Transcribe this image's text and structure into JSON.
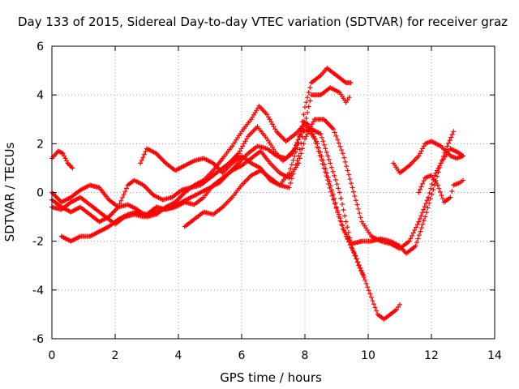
{
  "chart_data": {
    "type": "scatter",
    "title": "Day 133 of 2015, Sidereal Day-to-day VTEC variation (SDTVAR) for receiver graz",
    "xlabel": "GPS time / hours",
    "ylabel": "SDTVAR / TECUs",
    "xlim": [
      0,
      14
    ],
    "ylim": [
      -6,
      6
    ],
    "xticks": [
      0,
      2,
      4,
      6,
      8,
      10,
      12,
      14
    ],
    "yticks": [
      -6,
      -4,
      -2,
      0,
      2,
      4,
      6
    ],
    "grid": true,
    "marker": "+",
    "color": "#ff0000",
    "series": [
      {
        "name": "s1",
        "points": [
          [
            0,
            1.4
          ],
          [
            0.2,
            1.7
          ],
          [
            0.35,
            1.6
          ],
          [
            0.5,
            1.2
          ],
          [
            0.65,
            1.0
          ]
        ]
      },
      {
        "name": "s2",
        "points": [
          [
            0.3,
            -1.8
          ],
          [
            0.6,
            -2.0
          ],
          [
            0.9,
            -1.8
          ],
          [
            1.2,
            -1.8
          ],
          [
            1.5,
            -1.6
          ],
          [
            1.8,
            -1.4
          ],
          [
            2.1,
            -1.1
          ],
          [
            2.4,
            -0.9
          ],
          [
            2.7,
            -0.8
          ],
          [
            3.0,
            -0.9
          ],
          [
            3.3,
            -0.6
          ],
          [
            3.6,
            -0.7
          ],
          [
            3.9,
            -0.6
          ],
          [
            4.2,
            -0.4
          ],
          [
            4.5,
            -0.5
          ],
          [
            4.8,
            -0.2
          ],
          [
            5.1,
            0.3
          ],
          [
            5.4,
            0.6
          ],
          [
            5.7,
            0.9
          ],
          [
            6.0,
            1.1
          ],
          [
            6.3,
            1.4
          ],
          [
            6.6,
            1.7
          ],
          [
            6.9,
            1.2
          ],
          [
            7.2,
            0.8
          ],
          [
            7.5,
            0.6
          ],
          [
            7.8,
            1.2
          ],
          [
            8.0,
            2.2
          ],
          [
            8.3,
            3.0
          ],
          [
            8.6,
            3.0
          ],
          [
            8.9,
            2.6
          ],
          [
            9.2,
            1.6
          ],
          [
            9.5,
            0.2
          ],
          [
            9.8,
            -1.2
          ],
          [
            10.1,
            -1.8
          ],
          [
            10.4,
            -2.0
          ],
          [
            10.7,
            -2.1
          ],
          [
            11.0,
            -2.3
          ],
          [
            11.3,
            -2.0
          ],
          [
            11.6,
            -1.2
          ],
          [
            11.9,
            -0.2
          ],
          [
            12.1,
            0.7
          ],
          [
            12.3,
            1.2
          ],
          [
            12.6,
            1.8
          ],
          [
            12.9,
            1.6
          ],
          [
            13.0,
            1.5
          ]
        ]
      },
      {
        "name": "s3",
        "points": [
          [
            0,
            0.0
          ],
          [
            0.3,
            -0.4
          ],
          [
            0.6,
            -0.2
          ],
          [
            0.9,
            0.1
          ],
          [
            1.2,
            0.3
          ],
          [
            1.5,
            0.2
          ],
          [
            1.8,
            -0.3
          ],
          [
            2.1,
            -0.6
          ],
          [
            2.4,
            -0.5
          ],
          [
            2.7,
            -0.7
          ],
          [
            3.0,
            -1.0
          ],
          [
            3.3,
            -0.9
          ],
          [
            3.6,
            -0.6
          ],
          [
            3.9,
            -0.4
          ],
          [
            4.2,
            0.0
          ],
          [
            4.5,
            0.3
          ],
          [
            4.8,
            0.5
          ],
          [
            5.1,
            0.9
          ],
          [
            5.4,
            1.4
          ],
          [
            5.7,
            1.9
          ],
          [
            6.0,
            2.5
          ],
          [
            6.3,
            3.0
          ],
          [
            6.55,
            3.55
          ],
          [
            6.8,
            3.2
          ],
          [
            7.1,
            2.5
          ],
          [
            7.4,
            2.1
          ],
          [
            7.7,
            2.4
          ],
          [
            8.0,
            2.8
          ],
          [
            8.3,
            2.2
          ],
          [
            8.6,
            1.0
          ],
          [
            8.9,
            -0.3
          ],
          [
            9.2,
            -1.5
          ],
          [
            9.5,
            -2.1
          ],
          [
            9.8,
            -2.0
          ],
          [
            10.1,
            -2.0
          ],
          [
            10.4,
            -1.9
          ],
          [
            10.7,
            -2.0
          ],
          [
            11.0,
            -2.2
          ],
          [
            11.2,
            -2.5
          ],
          [
            11.5,
            -2.2
          ],
          [
            11.8,
            -1.0
          ],
          [
            12.1,
            0.3
          ],
          [
            12.3,
            1.2
          ],
          [
            12.5,
            1.9
          ],
          [
            12.7,
            2.5
          ]
        ]
      },
      {
        "name": "s4",
        "points": [
          [
            0,
            -0.6
          ],
          [
            0.3,
            -0.7
          ],
          [
            0.6,
            -0.4
          ],
          [
            0.9,
            -0.2
          ],
          [
            1.2,
            -0.5
          ],
          [
            1.5,
            -0.8
          ],
          [
            1.8,
            -1.1
          ],
          [
            2.0,
            -1.3
          ],
          [
            2.3,
            -1.0
          ],
          [
            2.6,
            -0.9
          ],
          [
            2.9,
            -1.0
          ],
          [
            3.2,
            -0.8
          ],
          [
            3.5,
            -0.7
          ],
          [
            3.8,
            -0.6
          ],
          [
            4.1,
            -0.4
          ],
          [
            4.4,
            -0.2
          ],
          [
            4.7,
            0.0
          ],
          [
            5.0,
            0.2
          ],
          [
            5.3,
            0.4
          ],
          [
            5.6,
            0.8
          ],
          [
            5.9,
            1.2
          ],
          [
            6.2,
            1.6
          ],
          [
            6.5,
            1.9
          ],
          [
            6.8,
            1.8
          ],
          [
            7.1,
            1.5
          ],
          [
            7.4,
            1.4
          ],
          [
            7.7,
            1.8
          ],
          [
            7.95,
            2.9
          ],
          [
            8.1,
            2.8
          ],
          [
            8.4,
            2.0
          ],
          [
            8.7,
            0.8
          ],
          [
            9.0,
            -0.6
          ],
          [
            9.3,
            -1.8
          ],
          [
            9.6,
            -2.6
          ],
          [
            9.9,
            -3.6
          ],
          [
            10.1,
            -4.3
          ],
          [
            10.3,
            -5.0
          ],
          [
            10.5,
            -5.2
          ],
          [
            10.7,
            -5.0
          ],
          [
            10.9,
            -4.8
          ],
          [
            11.0,
            -4.6
          ]
        ]
      },
      {
        "name": "s5",
        "points": [
          [
            0,
            -0.3
          ],
          [
            0.3,
            -0.6
          ],
          [
            0.6,
            -0.8
          ],
          [
            0.9,
            -0.6
          ],
          [
            1.2,
            -0.9
          ],
          [
            1.5,
            -1.2
          ],
          [
            1.8,
            -1.0
          ],
          [
            2.1,
            -0.6
          ],
          [
            2.4,
            0.3
          ],
          [
            2.6,
            0.5
          ],
          [
            2.9,
            0.3
          ],
          [
            3.2,
            -0.1
          ],
          [
            3.5,
            -0.3
          ],
          [
            3.8,
            -0.2
          ],
          [
            4.1,
            0.1
          ],
          [
            4.4,
            0.2
          ],
          [
            4.7,
            0.3
          ],
          [
            5.0,
            0.6
          ],
          [
            5.3,
            0.9
          ],
          [
            5.6,
            1.2
          ],
          [
            5.9,
            1.6
          ],
          [
            6.2,
            2.3
          ],
          [
            6.5,
            2.7
          ],
          [
            6.8,
            2.2
          ],
          [
            7.1,
            1.6
          ],
          [
            7.3,
            1.3
          ],
          [
            7.6,
            1.6
          ],
          [
            7.9,
            2.5
          ],
          [
            8.2,
            2.6
          ],
          [
            8.5,
            2.4
          ],
          [
            8.8,
            1.2
          ],
          [
            9.1,
            0.0
          ],
          [
            9.3,
            -1.2
          ],
          [
            9.5,
            -2.3
          ],
          [
            9.7,
            -3.0
          ],
          [
            9.85,
            -3.4
          ]
        ]
      },
      {
        "name": "s6",
        "points": [
          [
            2.8,
            1.2
          ],
          [
            3.0,
            1.8
          ],
          [
            3.3,
            1.6
          ],
          [
            3.6,
            1.2
          ],
          [
            3.9,
            0.9
          ],
          [
            4.2,
            1.1
          ],
          [
            4.5,
            1.3
          ],
          [
            4.8,
            1.4
          ],
          [
            5.1,
            1.2
          ],
          [
            5.4,
            0.8
          ],
          [
            5.7,
            1.2
          ],
          [
            6.0,
            1.5
          ],
          [
            6.3,
            1.2
          ],
          [
            6.6,
            1.0
          ],
          [
            6.9,
            0.5
          ],
          [
            7.2,
            0.3
          ],
          [
            7.5,
            0.8
          ],
          [
            7.8,
            2.0
          ],
          [
            8.0,
            3.5
          ],
          [
            8.2,
            4.5
          ],
          [
            8.5,
            4.8
          ],
          [
            8.7,
            5.1
          ],
          [
            9.0,
            4.8
          ],
          [
            9.3,
            4.5
          ],
          [
            9.45,
            4.5
          ]
        ]
      },
      {
        "name": "s7",
        "points": [
          [
            4.2,
            -1.4
          ],
          [
            4.5,
            -1.1
          ],
          [
            4.8,
            -0.8
          ],
          [
            5.1,
            -0.9
          ],
          [
            5.4,
            -0.6
          ],
          [
            5.7,
            -0.2
          ],
          [
            6.0,
            0.3
          ],
          [
            6.3,
            0.7
          ],
          [
            6.6,
            0.9
          ],
          [
            6.9,
            0.6
          ],
          [
            7.2,
            0.3
          ],
          [
            7.5,
            0.2
          ],
          [
            7.8,
            1.5
          ],
          [
            8.0,
            2.8
          ],
          [
            8.2,
            4.0
          ],
          [
            8.5,
            4.0
          ],
          [
            8.8,
            4.3
          ],
          [
            9.1,
            4.1
          ],
          [
            9.3,
            3.7
          ],
          [
            9.4,
            3.9
          ]
        ]
      },
      {
        "name": "s8",
        "points": [
          [
            10.8,
            1.2
          ],
          [
            11.0,
            0.8
          ],
          [
            11.3,
            1.1
          ],
          [
            11.6,
            1.5
          ],
          [
            11.8,
            2.0
          ],
          [
            12.0,
            2.1
          ],
          [
            12.3,
            1.9
          ],
          [
            12.6,
            1.5
          ],
          [
            12.8,
            1.4
          ],
          [
            13.0,
            1.5
          ]
        ]
      },
      {
        "name": "s9",
        "points": [
          [
            11.6,
            0.0
          ],
          [
            11.8,
            0.6
          ],
          [
            12.0,
            0.7
          ],
          [
            12.2,
            0.3
          ],
          [
            12.4,
            -0.4
          ],
          [
            12.6,
            -0.2
          ],
          [
            12.7,
            0.3
          ],
          [
            12.9,
            0.4
          ],
          [
            13.0,
            0.5
          ]
        ]
      }
    ]
  }
}
